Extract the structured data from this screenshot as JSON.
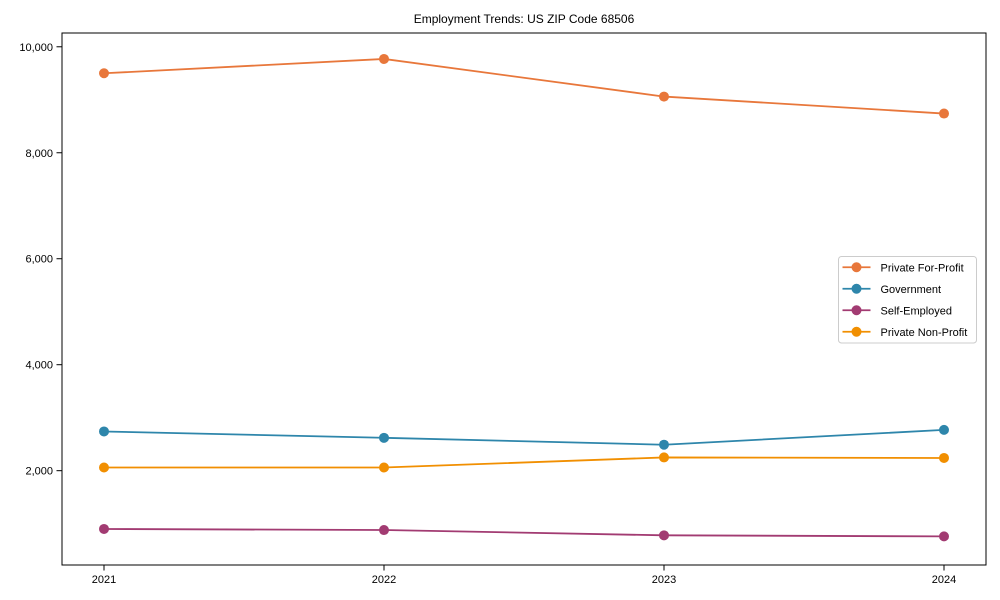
{
  "figure": {
    "background": "#ffffff",
    "axis_color": "#000000"
  },
  "chart_data": {
    "type": "line",
    "title": "Employment Trends: US ZIP Code 68506",
    "xlabel": "",
    "ylabel": "",
    "x": [
      2021,
      2022,
      2023,
      2024
    ],
    "x_tick_labels": [
      "2021",
      "2022",
      "2023",
      "2024"
    ],
    "y_ticks": [
      {
        "value": 2000,
        "label": "2,000"
      },
      {
        "value": 4000,
        "label": "4,000"
      },
      {
        "value": 6000,
        "label": "6,000"
      },
      {
        "value": 8000,
        "label": "8,000"
      },
      {
        "value": 10000,
        "label": "10,000"
      }
    ],
    "xlim": [
      2020.85,
      2024.15
    ],
    "ylim": [
      220,
      10260
    ],
    "grid": false,
    "legend": {
      "position": "center-right",
      "background": "#ffffff",
      "border_color": "#cccccc"
    },
    "series": [
      {
        "name": "Private For-Profit",
        "color": "#E8773B",
        "values": [
          9500,
          9770,
          9060,
          8740
        ]
      },
      {
        "name": "Government",
        "color": "#2E86AB",
        "values": [
          2740,
          2620,
          2490,
          2770
        ]
      },
      {
        "name": "Self-Employed",
        "color": "#A23B72",
        "values": [
          900,
          880,
          780,
          760
        ]
      },
      {
        "name": "Private Non-Profit",
        "color": "#F18F01",
        "values": [
          2060,
          2060,
          2250,
          2240
        ]
      }
    ]
  }
}
